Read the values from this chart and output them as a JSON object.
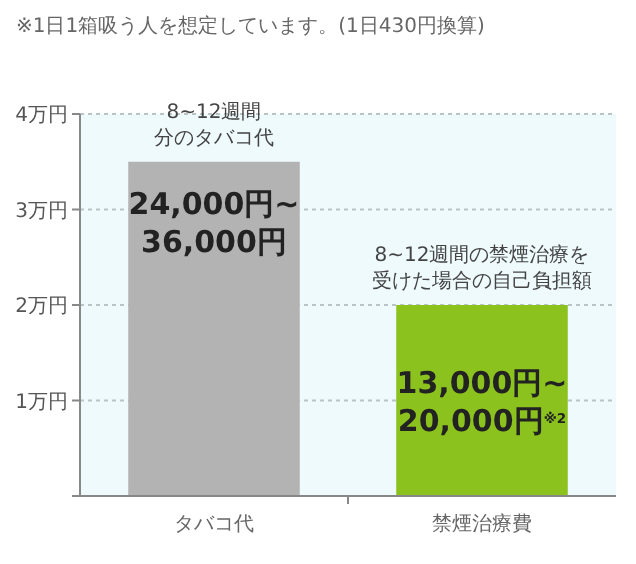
{
  "chart_data": {
    "type": "bar",
    "title": "※1日1箱吸う人を想定しています。(1日430円換算)",
    "categories": [
      "タバコ代",
      "禁煙治療費"
    ],
    "values": [
      3.5,
      2
    ],
    "colors": [
      "#b3b3b3",
      "#8cc21e"
    ],
    "annotations": [
      {
        "text": "8~12週間分のタバコ代",
        "x": "タバコ代",
        "y": 3.5
      },
      {
        "text": "8~12週間の禁煙治療を受けた場合の自己負担額",
        "x": "禁煙治療費",
        "y": 2
      },
      "24,000円~36,000円",
      "13,000円~20,000円$^{※2}$"
    ],
    "ylim": [
      0,
      4
    ],
    "yticks": [
      {
        "value": 0,
        "label": null
      },
      {
        "value": 1,
        "label": "1万円"
      },
      {
        "value": 2,
        "label": "2万円"
      },
      {
        "value": 3,
        "label": "3万円"
      },
      {
        "value": 4,
        "label": "4万円"
      }
    ],
    "grid": "y"
  }
}
